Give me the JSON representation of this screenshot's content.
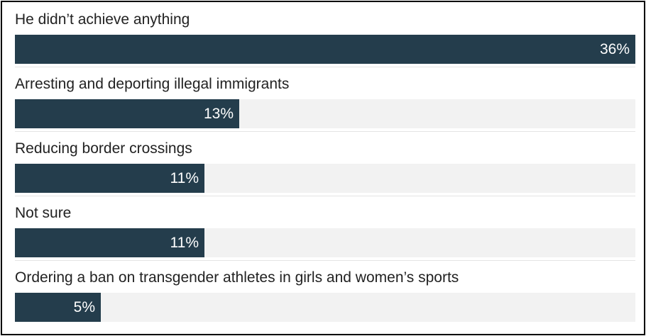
{
  "chart_data": {
    "type": "bar",
    "orientation": "horizontal",
    "title": "",
    "xlabel": "",
    "ylabel": "",
    "xlim": [
      0,
      36
    ],
    "categories": [
      "He didn’t achieve anything",
      "Arresting and deporting illegal immigrants",
      "Reducing border crossings",
      "Not sure",
      "Ordering a ban on transgender athletes in girls and women’s sports"
    ],
    "values": [
      36,
      13,
      11,
      11,
      5
    ],
    "value_labels": [
      "36%",
      "13%",
      "11%",
      "11%",
      "5%"
    ],
    "colors": {
      "bar": "#243d4c",
      "track": "#f2f2f2",
      "value_text": "#ffffff"
    }
  }
}
